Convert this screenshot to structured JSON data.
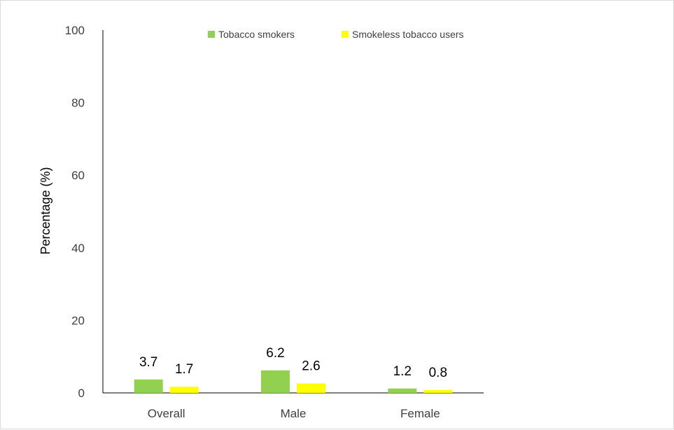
{
  "chart_data": {
    "type": "bar",
    "title": "",
    "xlabel": "",
    "ylabel": "Percentage (%)",
    "ylim": [
      0,
      100
    ],
    "yticks": [
      0,
      20,
      40,
      60,
      80,
      100
    ],
    "categories": [
      "Overall",
      "Male",
      "Female"
    ],
    "series": [
      {
        "name": "Tobacco smokers",
        "values": [
          3.7,
          6.2,
          1.2
        ],
        "labels": [
          "3.7",
          "6.2",
          "1.2"
        ],
        "color": "#92d050"
      },
      {
        "name": "Smokeless tobacco users",
        "values": [
          1.7,
          2.6,
          0.8
        ],
        "labels": [
          "1.7",
          "2.6",
          "0.8"
        ],
        "color": "#ffff00"
      }
    ],
    "grid": false,
    "legend_position": "top"
  }
}
